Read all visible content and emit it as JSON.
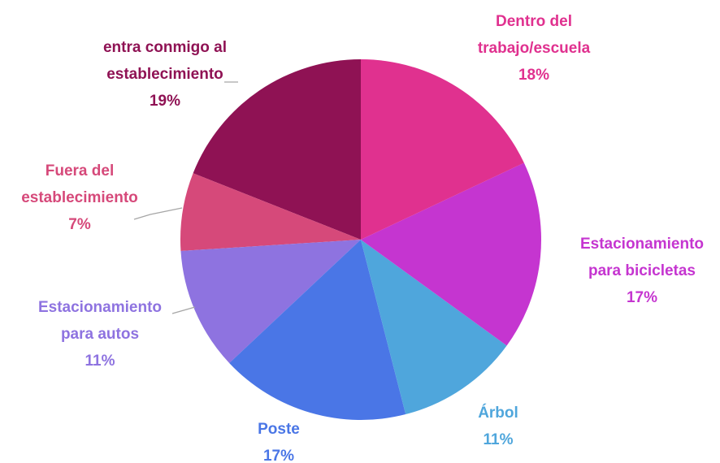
{
  "chart_data": {
    "type": "pie",
    "categories": [
      "Dentro del\ntrabajo/escuela",
      "Estacionamiento\npara bicicletas",
      "Árbol",
      "Poste",
      "Estacionamiento\npara autos",
      "Fuera del\nestablecimiento",
      "entra conmigo al\nestablecimiento"
    ],
    "values": [
      18,
      17,
      11,
      17,
      11,
      7,
      19
    ],
    "value_labels": [
      "18%",
      "17%",
      "11%",
      "17%",
      "11%",
      "7%",
      "19%"
    ],
    "colors": [
      "#e0318f",
      "#c535d0",
      "#4fa6dc",
      "#4a76e6",
      "#8e73e0",
      "#d6497a",
      "#8f1254"
    ]
  }
}
